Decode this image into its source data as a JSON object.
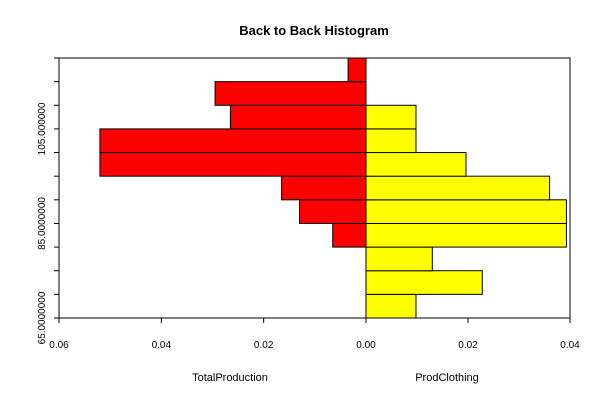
{
  "chart_data": {
    "type": "bar",
    "title": "Back to Back Histogram",
    "orientation": "horizontal-back-to-back",
    "left_series": {
      "name": "TotalProduction",
      "color": "#ff0000",
      "densities": [
        0.0,
        0.0,
        0.0,
        0.0065,
        0.013,
        0.0165,
        0.052,
        0.052,
        0.0265,
        0.0295,
        0.0035
      ]
    },
    "right_series": {
      "name": "ProdClothing",
      "color": "#ffff00",
      "densities": [
        0.0098,
        0.0228,
        0.013,
        0.0393,
        0.0393,
        0.036,
        0.0196,
        0.0098,
        0.0098,
        0.0,
        0.0
      ]
    },
    "bins": [
      65,
      70,
      75,
      80,
      85,
      90,
      95,
      100,
      105,
      110,
      115,
      120
    ],
    "y_tick_labels": [
      "65.0000000",
      "85.0000000",
      "105.000000"
    ],
    "y_tick_values": [
      65,
      85,
      105
    ],
    "left_xlim": [
      0.06,
      0.0
    ],
    "right_xlim": [
      0.0,
      0.04
    ],
    "left_x_tick_labels": [
      "0.06",
      "0.04",
      "0.02",
      "0.00"
    ],
    "left_x_tick_values": [
      0.06,
      0.04,
      0.02,
      0.0
    ],
    "right_x_tick_labels": [
      "0.02",
      "0.04"
    ],
    "right_x_tick_values": [
      0.02,
      0.04
    ],
    "bar_outline": "#000000"
  }
}
